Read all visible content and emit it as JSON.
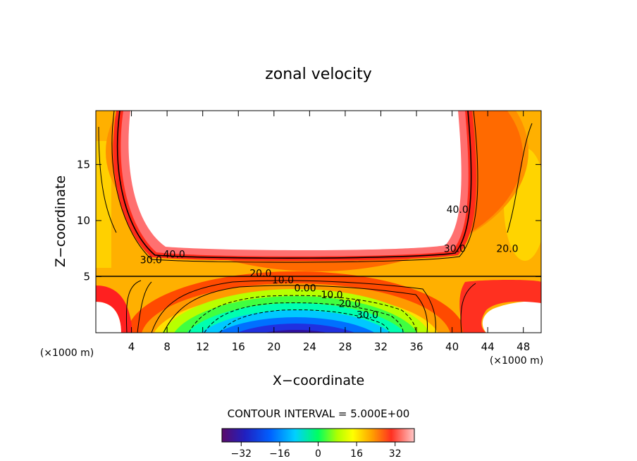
{
  "chart_data": {
    "type": "heatmap",
    "title": "zonal velocity",
    "xlabel": "X−coordinate",
    "ylabel": "Z−coordinate",
    "x_unit": "(×1000 m)",
    "y_unit": "(×1000 m)",
    "xlim": [
      0,
      50
    ],
    "ylim": [
      0,
      19.8
    ],
    "xticks": [
      4,
      8,
      12,
      16,
      20,
      24,
      28,
      32,
      36,
      40,
      44,
      48
    ],
    "yticks": [
      5,
      10,
      15
    ],
    "contour_interval_text": "CONTOUR INTERVAL = 5.000E+00",
    "colorbar": {
      "range": [
        -40,
        40
      ],
      "ticks": [
        -32,
        -16,
        0,
        16,
        32
      ],
      "tick_labels": [
        "−32",
        "−16",
        "0",
        "16",
        "32"
      ]
    },
    "contour_labels": [
      {
        "text": "40.0",
        "x": 8.8,
        "z": 7.0
      },
      {
        "text": "30.0",
        "x": 6.2,
        "z": 6.5
      },
      {
        "text": "20.0",
        "x": 18.5,
        "z": 5.3
      },
      {
        "text": "10.0",
        "x": 21.0,
        "z": 4.7
      },
      {
        "text": "0.00",
        "x": 23.5,
        "z": 4.0
      },
      {
        "text": "10.0",
        "x": 26.5,
        "z": 3.4
      },
      {
        "text": "20.0",
        "x": 28.5,
        "z": 2.6
      },
      {
        "text": "30.0",
        "x": 30.5,
        "z": 1.6
      },
      {
        "text": "40.0",
        "x": 40.6,
        "z": 11.0
      },
      {
        "text": "30.0",
        "x": 40.3,
        "z": 7.5
      },
      {
        "text": "20.0",
        "x": 46.2,
        "z": 7.5
      }
    ]
  },
  "palette": [
    "#4b0082",
    "#0000ff",
    "#00c8ff",
    "#00ff80",
    "#80ff00",
    "#ffff00",
    "#ffa500",
    "#ff4000",
    "#ff2020",
    "#ffc0c0"
  ]
}
